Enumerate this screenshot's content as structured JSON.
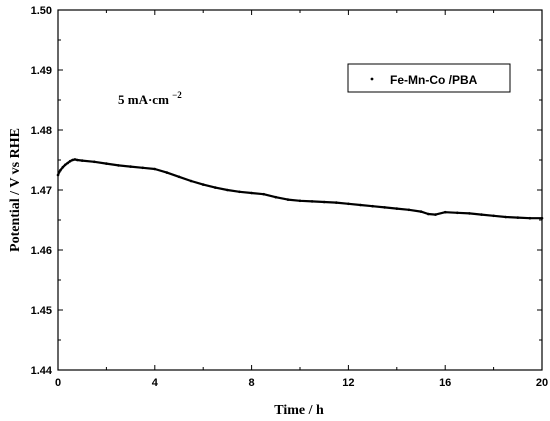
{
  "chart_data": {
    "type": "line",
    "title": "",
    "xlabel": "Time / h",
    "ylabel": "Potential / V vs RHE",
    "xlim": [
      0,
      20
    ],
    "ylim": [
      1.44,
      1.5
    ],
    "xticks": [
      0,
      4,
      8,
      12,
      16,
      20
    ],
    "xtick_labels": [
      "0",
      "4",
      "8",
      "12",
      "16",
      "20"
    ],
    "yticks": [
      1.44,
      1.45,
      1.46,
      1.47,
      1.48,
      1.49,
      1.5
    ],
    "ytick_labels": [
      "1.44",
      "1.45",
      "1.46",
      "1.47",
      "1.48",
      "1.49",
      "1.50"
    ],
    "grid": false,
    "legend_position": "top-right",
    "annotation": {
      "main": "5 mA·cm",
      "superscript": "−2"
    },
    "series": [
      {
        "name": "Fe-Mn-Co /PBA",
        "color": "#000000",
        "x": [
          0,
          0.05,
          0.1,
          0.2,
          0.3,
          0.4,
          0.5,
          0.6,
          0.7,
          0.8,
          1.0,
          1.5,
          2.0,
          2.5,
          3.0,
          3.5,
          4.0,
          4.5,
          5.0,
          5.5,
          6.0,
          6.5,
          7.0,
          7.5,
          8.0,
          8.5,
          9.0,
          9.5,
          10.0,
          10.5,
          11.0,
          11.5,
          12.0,
          12.5,
          13.0,
          13.5,
          14.0,
          14.5,
          15.0,
          15.3,
          15.6,
          16.0,
          16.5,
          17.0,
          17.5,
          18.0,
          18.5,
          19.0,
          19.5,
          20.0
        ],
        "y": [
          1.4725,
          1.473,
          1.4733,
          1.4738,
          1.4742,
          1.4745,
          1.4748,
          1.475,
          1.4751,
          1.475,
          1.4749,
          1.4747,
          1.4744,
          1.4741,
          1.4739,
          1.4737,
          1.4735,
          1.4729,
          1.4722,
          1.4715,
          1.4709,
          1.4704,
          1.47,
          1.4697,
          1.4695,
          1.4693,
          1.4688,
          1.4684,
          1.4682,
          1.4681,
          1.468,
          1.4679,
          1.4677,
          1.4675,
          1.4673,
          1.4671,
          1.4669,
          1.4667,
          1.4664,
          1.466,
          1.4659,
          1.4663,
          1.4662,
          1.4661,
          1.4659,
          1.4657,
          1.4655,
          1.4654,
          1.4653,
          1.4653
        ]
      }
    ]
  }
}
